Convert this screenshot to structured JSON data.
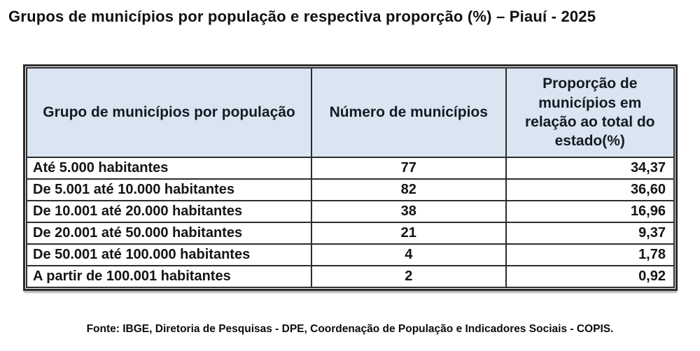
{
  "page": {
    "title": "Grupos de municípios por população e respectiva proporção (%) – Piauí - 2025",
    "source_note": "Fonte: IBGE, Diretoria de Pesquisas - DPE, Coordenação de População e Indicadores Sociais - COPIS."
  },
  "colors": {
    "header_bg": "#d9e5f1",
    "border": "#2d2d2d",
    "text": "#141414"
  },
  "table": {
    "columns": [
      {
        "label": "Grupo de municípios por população"
      },
      {
        "label": "Número de municípios"
      },
      {
        "label": "Proporção de\nmunicípios em\nrelação ao total do\nestado(%)"
      }
    ],
    "rows": [
      {
        "group": "Até 5.000 habitantes",
        "count": "77",
        "proportion": "34,37"
      },
      {
        "group": "De 5.001 até 10.000 habitantes",
        "count": "82",
        "proportion": "36,60"
      },
      {
        "group": "De 10.001 até 20.000 habitantes",
        "count": "38",
        "proportion": "16,96"
      },
      {
        "group": "De 20.001 até 50.000 habitantes",
        "count": "21",
        "proportion": "9,37"
      },
      {
        "group": "De 50.001 até 100.000 habitantes",
        "count": "4",
        "proportion": "1,78"
      },
      {
        "group": "A partir de 100.001 habitantes",
        "count": "2",
        "proportion": "0,92"
      }
    ]
  },
  "chart_data": {
    "type": "table",
    "title": "Grupos de municípios por população e respectiva proporção (%) – Piauí - 2025",
    "columns": [
      "Grupo de municípios por população",
      "Número de municípios",
      "Proporção de municípios em relação ao total do estado(%)"
    ],
    "categories": [
      "Até 5.000 habitantes",
      "De 5.001 até 10.000 habitantes",
      "De 10.001 até 20.000 habitantes",
      "De 20.001 até 50.000 habitantes",
      "De 50.001 até 100.000 habitantes",
      "A partir de 100.001 habitantes"
    ],
    "series": [
      {
        "name": "Número de municípios",
        "values": [
          77,
          82,
          38,
          21,
          4,
          2
        ]
      },
      {
        "name": "Proporção de municípios em relação ao total do estado(%)",
        "values": [
          34.37,
          36.6,
          16.96,
          9.37,
          1.78,
          0.92
        ]
      }
    ],
    "source": "Fonte: IBGE, Diretoria de Pesquisas - DPE, Coordenação de População e Indicadores Sociais - COPIS."
  }
}
